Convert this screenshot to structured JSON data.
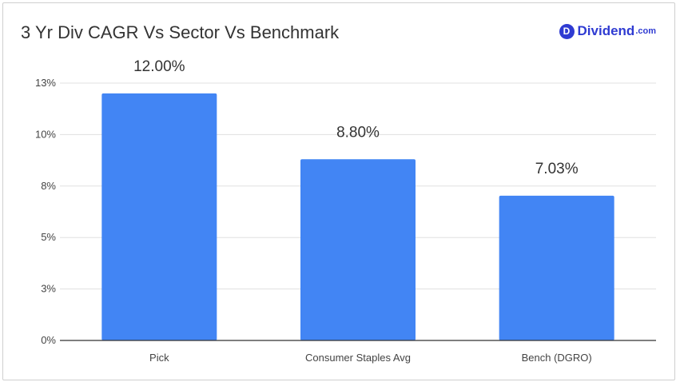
{
  "header": {
    "title": "3 Yr Div CAGR Vs Sector Vs Benchmark",
    "logo_icon": "D",
    "logo_name": "Dividend",
    "logo_suffix": ".com"
  },
  "colors": {
    "bar": "#4285f4",
    "grid": "#e0e0e0",
    "axis": "#333333",
    "text": "#444444",
    "brand": "#2f3bd2"
  },
  "chart_data": {
    "type": "bar",
    "title": "3 Yr Div CAGR Vs Sector Vs Benchmark",
    "categories": [
      "Pick",
      "Consumer Staples Avg",
      "Bench (DGRO)"
    ],
    "values": [
      12.0,
      8.8,
      7.03
    ],
    "data_labels": [
      "12.00%",
      "8.80%",
      "7.03%"
    ],
    "yticks": [
      0,
      2.5,
      5,
      7.5,
      10,
      12.5
    ],
    "ytick_labels": [
      "0%",
      "3%",
      "5%",
      "8%",
      "10%",
      "13%"
    ],
    "ylim": [
      0,
      12.5
    ],
    "grid": true,
    "legend": false,
    "xlabel": "",
    "ylabel": ""
  }
}
